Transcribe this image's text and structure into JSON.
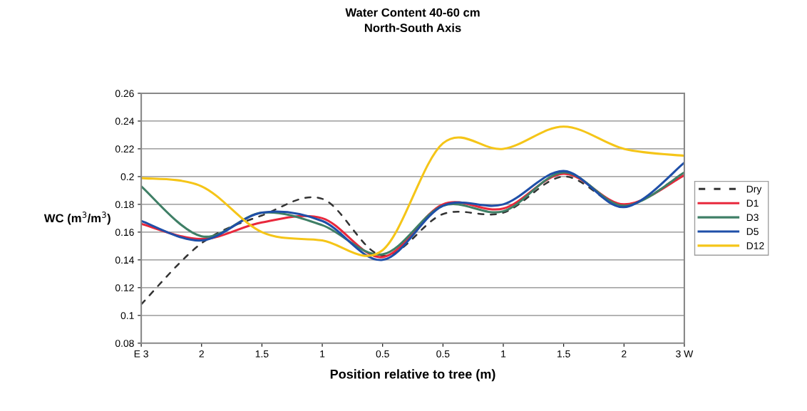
{
  "chart_data": {
    "type": "line",
    "title": "Water Content 40-60 cm\nNorth-South Axis",
    "xlabel": "Position relative to tree (m)",
    "ylabel": "WC (m$^{3}$/m$^{3}$)",
    "categories": [
      "E 3",
      "2",
      "1.5",
      "1",
      "0.5",
      "0.5",
      "1",
      "1.5",
      "2",
      "3 W"
    ],
    "ylim": [
      0.08,
      0.26
    ],
    "yticks": [
      0.08,
      0.1,
      0.12,
      0.14,
      0.16,
      0.18,
      0.2,
      0.22,
      0.24,
      0.26
    ],
    "grid": "y",
    "legend": "right",
    "marker": "none",
    "series": [
      {
        "name": "Dry",
        "color": "#333333",
        "line_style": "dashed",
        "values": [
          0.108,
          0.152,
          0.172,
          0.184,
          0.143,
          0.173,
          0.174,
          0.2,
          0.179,
          0.203
        ]
      },
      {
        "name": "D1",
        "color": "#e8283c",
        "values": [
          0.166,
          0.155,
          0.167,
          0.17,
          0.142,
          0.18,
          0.177,
          0.202,
          0.18,
          0.201
        ]
      },
      {
        "name": "D3",
        "color": "#3f7f66",
        "values": [
          0.193,
          0.157,
          0.174,
          0.165,
          0.144,
          0.179,
          0.175,
          0.203,
          0.179,
          0.203
        ]
      },
      {
        "name": "D5",
        "color": "#1f4fa8",
        "values": [
          0.168,
          0.154,
          0.174,
          0.168,
          0.14,
          0.179,
          0.18,
          0.204,
          0.178,
          0.21
        ]
      },
      {
        "name": "D12",
        "color": "#f5c518",
        "values": [
          0.199,
          0.193,
          0.16,
          0.154,
          0.147,
          0.224,
          0.22,
          0.236,
          0.22,
          0.215
        ]
      }
    ]
  }
}
